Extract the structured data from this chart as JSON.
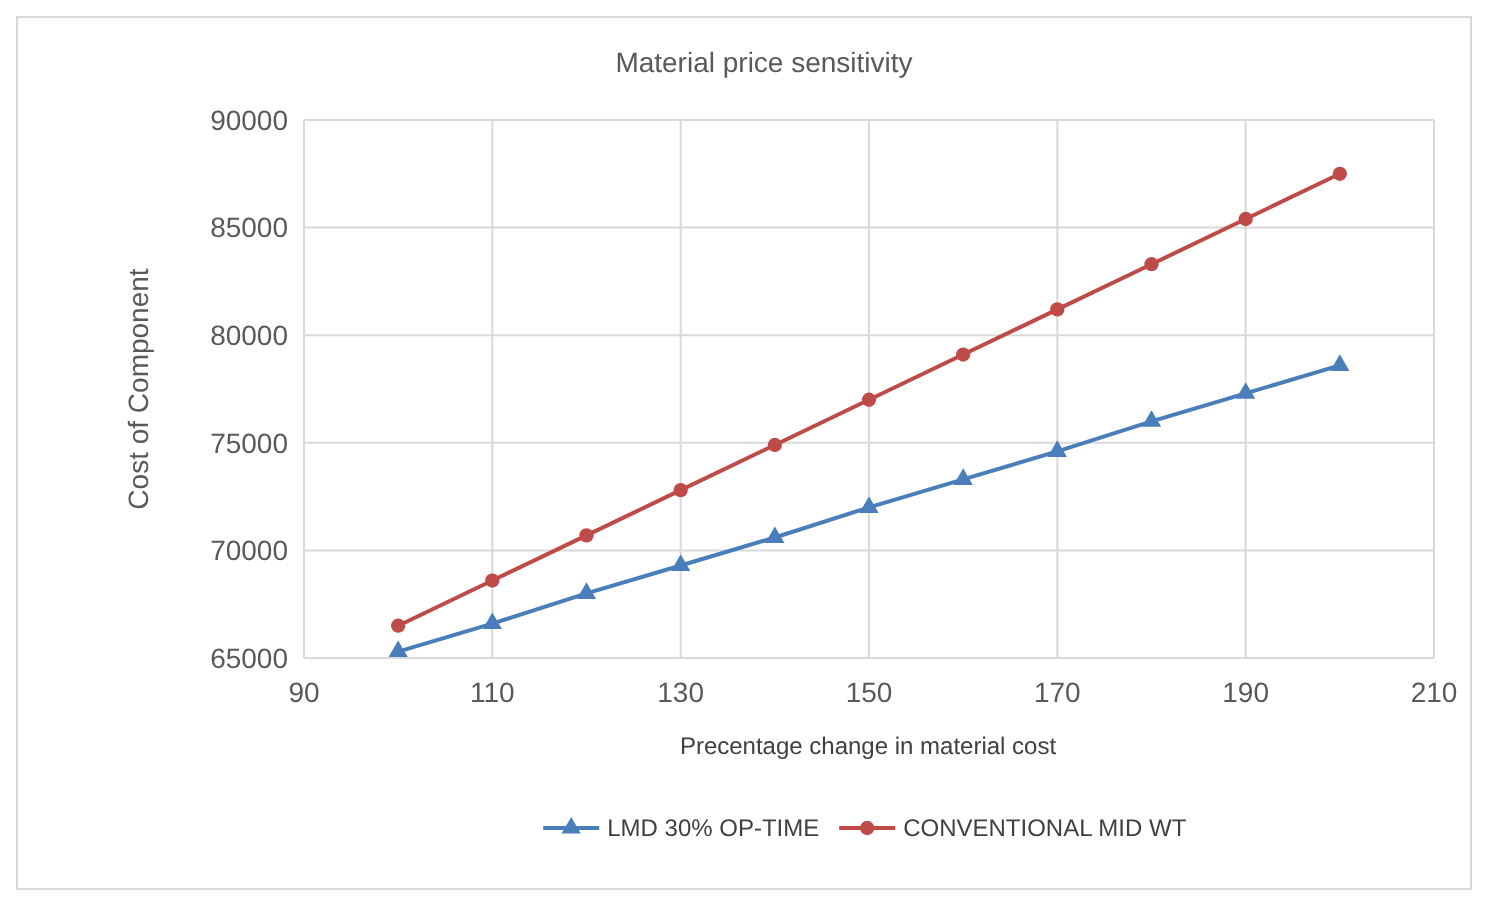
{
  "chart_data": {
    "type": "line",
    "title": "Material price sensitivity",
    "xlabel": "Precentage change in material cost",
    "ylabel": "Cost of Component",
    "x": [
      100,
      110,
      120,
      130,
      140,
      150,
      160,
      170,
      180,
      190,
      200
    ],
    "series": [
      {
        "name": "LMD 30% OP-TIME",
        "color": "#4a7ebb",
        "marker": "triangle",
        "values": [
          65300,
          66600,
          68000,
          69300,
          70600,
          72000,
          73300,
          74600,
          76000,
          77300,
          78600
        ]
      },
      {
        "name": "CONVENTIONAL MID WT",
        "color": "#be4b48",
        "marker": "circle",
        "values": [
          66500,
          68600,
          70700,
          72800,
          74900,
          77000,
          79100,
          81200,
          83300,
          85400,
          87500
        ]
      }
    ],
    "xlim": [
      90,
      210
    ],
    "xticks": [
      90,
      110,
      130,
      150,
      170,
      190,
      210
    ],
    "ylim": [
      65000,
      90000
    ],
    "yticks": [
      65000,
      70000,
      75000,
      80000,
      85000,
      90000
    ],
    "grid": true,
    "legend": "bottom",
    "line_style": "solid"
  }
}
